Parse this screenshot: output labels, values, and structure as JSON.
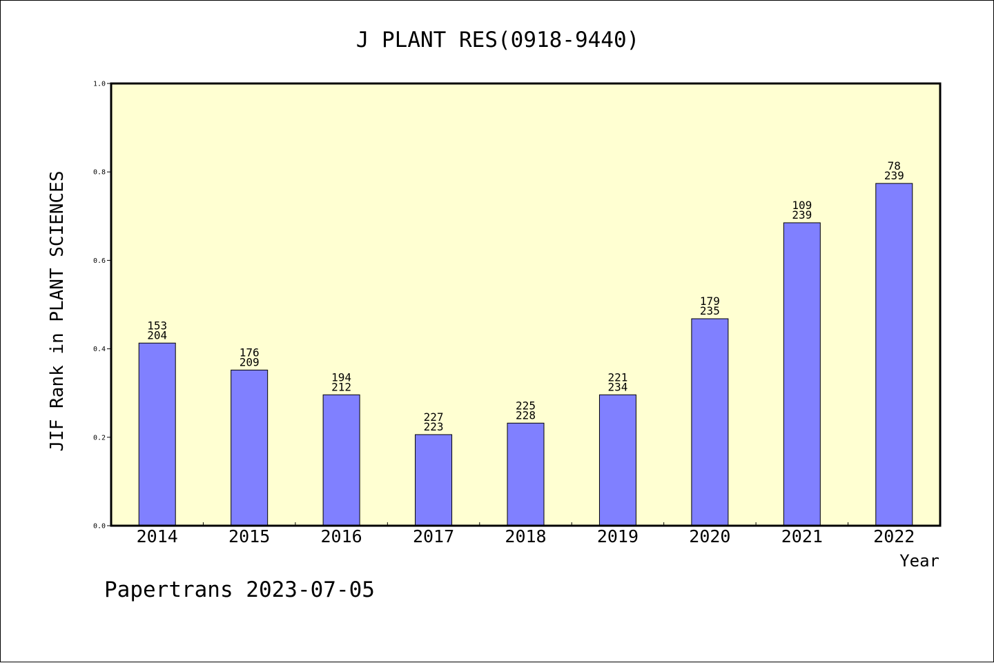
{
  "chart_data": {
    "type": "bar",
    "title": "J PLANT RES(0918-9440)",
    "xlabel": "Year",
    "ylabel": "JIF Rank in PLANT SCIENCES",
    "ylim": [
      0,
      1.0
    ],
    "yticks": [
      "0.0",
      "0.2",
      "0.4",
      "0.6",
      "0.8",
      "1.0"
    ],
    "categories": [
      "2014",
      "2015",
      "2016",
      "2017",
      "2018",
      "2019",
      "2020",
      "2021",
      "2022"
    ],
    "values": [
      0.413,
      0.352,
      0.296,
      0.206,
      0.232,
      0.296,
      0.468,
      0.685,
      0.774
    ],
    "labels_top": [
      "153",
      "176",
      "194",
      "227",
      "225",
      "221",
      "179",
      "109",
      "78"
    ],
    "labels_bottom": [
      "204",
      "209",
      "212",
      "223",
      "228",
      "234",
      "235",
      "239",
      "239"
    ],
    "grid": false,
    "colors": {
      "plot_background": "#ffffd2",
      "bar": "#8080ff",
      "bar_edge": "#000000"
    }
  },
  "footer": "Papertrans 2023-07-05"
}
